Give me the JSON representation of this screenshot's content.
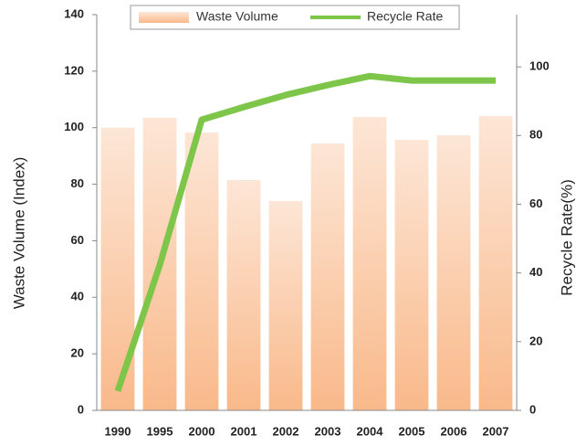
{
  "chart_data": {
    "type": "bar-line",
    "categories": [
      "1990",
      "1995",
      "2000",
      "2001",
      "2002",
      "2003",
      "2004",
      "2005",
      "2006",
      "2007"
    ],
    "series": [
      {
        "name": "Waste Volume",
        "color": "#f9b98a",
        "values": [
          100,
          103.5,
          98.3,
          81.5,
          74,
          94.4,
          103.8,
          95.7,
          97.3,
          104.1
        ]
      },
      {
        "name": "Recycle Rate",
        "color": "#7dc64a",
        "axis": "y2",
        "values": [
          5.6,
          42.3,
          84.6,
          88.3,
          91.8,
          94.7,
          97.3,
          96,
          96,
          96
        ]
      }
    ],
    "ylabel": "Waste Volume (Index)",
    "y2label": "Recycle Rate(%)",
    "ylim": [
      0,
      140
    ],
    "yticks": [
      0,
      20,
      40,
      60,
      80,
      100,
      120,
      140
    ],
    "y2lim": [
      0,
      115.2
    ],
    "y2ticks": [
      0,
      20,
      40,
      60,
      80,
      100
    ],
    "legend": "top"
  }
}
